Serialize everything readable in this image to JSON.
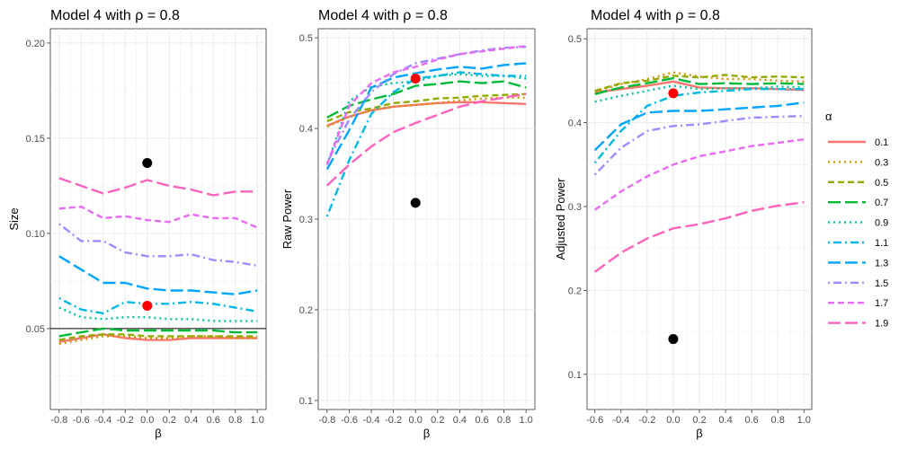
{
  "legend": {
    "title": "α",
    "items": [
      {
        "label": "0.1",
        "color": "#F8766D",
        "dash": "solid"
      },
      {
        "label": "0.3",
        "color": "#D39200",
        "dash": "dotted"
      },
      {
        "label": "0.5",
        "color": "#93AA00",
        "dash": "dashed"
      },
      {
        "label": "0.7",
        "color": "#00BA38",
        "dash": "longdash"
      },
      {
        "label": "0.9",
        "color": "#00C19F",
        "dash": "dotted"
      },
      {
        "label": "1.1",
        "color": "#00B9E3",
        "dash": "dotdash"
      },
      {
        "label": "1.3",
        "color": "#00A5FF",
        "dash": "longdash"
      },
      {
        "label": "1.5",
        "color": "#9D8BFF",
        "dash": "dotdash"
      },
      {
        "label": "1.7",
        "color": "#E76BF3",
        "dash": "dashed"
      },
      {
        "label": "1.9",
        "color": "#FF62BC",
        "dash": "longdash"
      }
    ]
  },
  "chart_data": [
    {
      "type": "line",
      "title": "Model 4 with ρ =  0.8",
      "xlabel": "β",
      "ylabel": "Size",
      "xlim": [
        -0.88,
        1.08
      ],
      "ylim": [
        0.0075,
        0.2075
      ],
      "xticks": [
        -0.8,
        -0.6,
        -0.4,
        -0.2,
        0.0,
        0.2,
        0.4,
        0.6,
        0.8,
        1.0
      ],
      "xtick_labels": [
        "-0.8",
        "-0.6",
        "-0.4",
        "-0.2",
        "0.0",
        "0.2",
        "0.4",
        "0.6",
        "0.8",
        "1.0"
      ],
      "yticks": [
        0.05,
        0.1,
        0.15,
        0.2
      ],
      "ytick_labels": [
        "0.05",
        "0.10",
        "0.15",
        "0.20"
      ],
      "hline": 0.05,
      "x": [
        -0.8,
        -0.6,
        -0.4,
        -0.2,
        0.0,
        0.2,
        0.4,
        0.6,
        0.8,
        1.0
      ],
      "series": [
        {
          "name": "0.1",
          "values": [
            0.043,
            0.045,
            0.047,
            0.045,
            0.044,
            0.044,
            0.045,
            0.045,
            0.045,
            0.045
          ]
        },
        {
          "name": "0.3",
          "values": [
            0.042,
            0.044,
            0.046,
            0.046,
            0.045,
            0.045,
            0.046,
            0.046,
            0.045,
            0.045
          ]
        },
        {
          "name": "0.5",
          "values": [
            0.044,
            0.046,
            0.047,
            0.047,
            0.046,
            0.046,
            0.046,
            0.046,
            0.046,
            0.046
          ]
        },
        {
          "name": "0.7",
          "values": [
            0.046,
            0.048,
            0.05,
            0.049,
            0.049,
            0.049,
            0.049,
            0.049,
            0.048,
            0.048
          ]
        },
        {
          "name": "0.9",
          "values": [
            0.061,
            0.056,
            0.055,
            0.056,
            0.056,
            0.055,
            0.055,
            0.054,
            0.054,
            0.054
          ]
        },
        {
          "name": "1.1",
          "values": [
            0.066,
            0.06,
            0.058,
            0.064,
            0.063,
            0.063,
            0.064,
            0.063,
            0.061,
            0.059
          ]
        },
        {
          "name": "1.3",
          "values": [
            0.088,
            0.081,
            0.074,
            0.074,
            0.071,
            0.07,
            0.07,
            0.069,
            0.068,
            0.07
          ]
        },
        {
          "name": "1.5",
          "values": [
            0.105,
            0.096,
            0.096,
            0.09,
            0.088,
            0.088,
            0.089,
            0.086,
            0.085,
            0.083
          ]
        },
        {
          "name": "1.7",
          "values": [
            0.113,
            0.114,
            0.108,
            0.109,
            0.107,
            0.106,
            0.11,
            0.108,
            0.108,
            0.103
          ]
        },
        {
          "name": "1.9",
          "values": [
            0.129,
            0.125,
            0.121,
            0.124,
            0.128,
            0.125,
            0.123,
            0.12,
            0.122,
            0.122
          ]
        }
      ],
      "points": [
        {
          "x": 0.0,
          "y": 0.137,
          "color": "#000000"
        },
        {
          "x": 0.0,
          "y": 0.062,
          "color": "#FF0000"
        }
      ]
    },
    {
      "type": "line",
      "title": "Model 4 with ρ =  0.8",
      "xlabel": "β",
      "ylabel": "Raw Power",
      "xlim": [
        -0.88,
        1.08
      ],
      "ylim": [
        0.09,
        0.51
      ],
      "xticks": [
        -0.8,
        -0.6,
        -0.4,
        -0.2,
        0.0,
        0.2,
        0.4,
        0.6,
        0.8,
        1.0
      ],
      "xtick_labels": [
        "-0.8",
        "-0.6",
        "-0.4",
        "-0.2",
        "0.0",
        "0.2",
        "0.4",
        "0.6",
        "0.8",
        "1.0"
      ],
      "yticks": [
        0.1,
        0.2,
        0.3,
        0.4,
        0.5
      ],
      "ytick_labels": [
        "0.1",
        "0.2",
        "0.3",
        "0.4",
        "0.5"
      ],
      "x": [
        -0.8,
        -0.6,
        -0.4,
        -0.2,
        0.0,
        0.2,
        0.4,
        0.6,
        0.8,
        1.0
      ],
      "series": [
        {
          "name": "0.1",
          "values": [
            0.403,
            0.413,
            0.42,
            0.424,
            0.426,
            0.428,
            0.429,
            0.429,
            0.428,
            0.427
          ]
        },
        {
          "name": "0.3",
          "values": [
            0.402,
            0.413,
            0.42,
            0.424,
            0.426,
            0.428,
            0.431,
            0.433,
            0.434,
            0.434
          ]
        },
        {
          "name": "0.5",
          "values": [
            0.408,
            0.418,
            0.422,
            0.428,
            0.43,
            0.433,
            0.434,
            0.436,
            0.437,
            0.438
          ]
        },
        {
          "name": "0.7",
          "values": [
            0.412,
            0.425,
            0.432,
            0.438,
            0.447,
            0.449,
            0.452,
            0.45,
            0.452,
            0.445
          ]
        },
        {
          "name": "0.9",
          "values": [
            0.36,
            0.43,
            0.446,
            0.45,
            0.452,
            0.458,
            0.46,
            0.458,
            0.458,
            0.455
          ]
        },
        {
          "name": "1.1",
          "values": [
            0.303,
            0.365,
            0.416,
            0.44,
            0.455,
            0.458,
            0.462,
            0.46,
            0.458,
            0.458
          ]
        },
        {
          "name": "1.3",
          "values": [
            0.355,
            0.398,
            0.445,
            0.456,
            0.461,
            0.465,
            0.468,
            0.466,
            0.47,
            0.472
          ]
        },
        {
          "name": "1.5",
          "values": [
            0.362,
            0.41,
            0.44,
            0.46,
            0.472,
            0.477,
            0.482,
            0.486,
            0.489,
            0.49
          ]
        },
        {
          "name": "1.7",
          "values": [
            0.36,
            0.425,
            0.45,
            0.462,
            0.468,
            0.476,
            0.482,
            0.485,
            0.488,
            0.491
          ]
        },
        {
          "name": "1.9",
          "values": [
            0.337,
            0.36,
            0.38,
            0.396,
            0.406,
            0.415,
            0.424,
            0.43,
            0.434,
            0.438
          ]
        }
      ],
      "points": [
        {
          "x": 0.0,
          "y": 0.318,
          "color": "#000000"
        },
        {
          "x": 0.0,
          "y": 0.455,
          "color": "#FF0000"
        }
      ]
    },
    {
      "type": "line",
      "title": "Model 4 with ρ =  0.8",
      "xlabel": "β",
      "ylabel": "Adjusted Power",
      "xlim": [
        -0.66,
        1.06
      ],
      "ylim": [
        0.058,
        0.512
      ],
      "xticks": [
        -0.6,
        -0.4,
        -0.2,
        0.0,
        0.2,
        0.4,
        0.6,
        0.8,
        1.0
      ],
      "xtick_labels": [
        "-0.6",
        "-0.4",
        "-0.2",
        "0.0",
        "0.2",
        "0.4",
        "0.6",
        "0.8",
        "1.0"
      ],
      "yticks": [
        0.1,
        0.2,
        0.3,
        0.4,
        0.5
      ],
      "ytick_labels": [
        "0.1",
        "0.2",
        "0.3",
        "0.4",
        "0.5"
      ],
      "x": [
        -0.6,
        -0.4,
        -0.2,
        0.0,
        0.2,
        0.4,
        0.6,
        0.8,
        1.0
      ],
      "series": [
        {
          "name": "0.1",
          "values": [
            0.436,
            0.44,
            0.444,
            0.449,
            0.442,
            0.441,
            0.441,
            0.44,
            0.439
          ]
        },
        {
          "name": "0.3",
          "values": [
            0.437,
            0.446,
            0.452,
            0.46,
            0.455,
            0.452,
            0.452,
            0.45,
            0.449
          ]
        },
        {
          "name": "0.5",
          "values": [
            0.438,
            0.447,
            0.45,
            0.456,
            0.454,
            0.457,
            0.454,
            0.455,
            0.454
          ]
        },
        {
          "name": "0.7",
          "values": [
            0.434,
            0.442,
            0.447,
            0.453,
            0.446,
            0.447,
            0.446,
            0.447,
            0.446
          ]
        },
        {
          "name": "0.9",
          "values": [
            0.425,
            0.432,
            0.438,
            0.444,
            0.44,
            0.441,
            0.441,
            0.443,
            0.442
          ]
        },
        {
          "name": "1.1",
          "values": [
            0.352,
            0.39,
            0.42,
            0.432,
            0.436,
            0.438,
            0.44,
            0.44,
            0.44
          ]
        },
        {
          "name": "1.3",
          "values": [
            0.367,
            0.398,
            0.412,
            0.414,
            0.414,
            0.416,
            0.418,
            0.42,
            0.424
          ]
        },
        {
          "name": "1.5",
          "values": [
            0.338,
            0.37,
            0.39,
            0.396,
            0.398,
            0.402,
            0.406,
            0.407,
            0.408
          ]
        },
        {
          "name": "1.7",
          "values": [
            0.296,
            0.318,
            0.336,
            0.35,
            0.36,
            0.366,
            0.372,
            0.376,
            0.38
          ]
        },
        {
          "name": "1.9",
          "values": [
            0.222,
            0.245,
            0.262,
            0.274,
            0.279,
            0.286,
            0.295,
            0.301,
            0.305
          ]
        }
      ],
      "points": [
        {
          "x": 0.0,
          "y": 0.142,
          "color": "#000000"
        },
        {
          "x": 0.0,
          "y": 0.435,
          "color": "#FF0000"
        }
      ]
    }
  ]
}
